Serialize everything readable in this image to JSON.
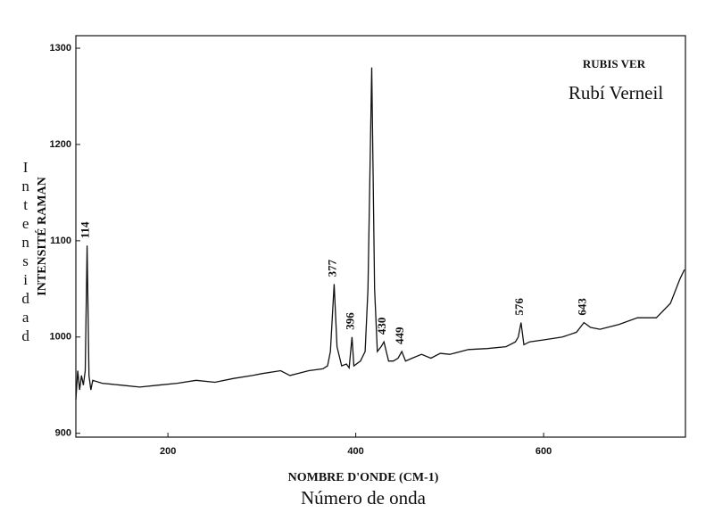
{
  "chart_data": {
    "type": "line",
    "title": "RUBIS VER",
    "subtitle": "Rubí Verneil",
    "x_label": "NOMBRE D'ONDE (CM-1)",
    "x_label_2": "Número de onda",
    "y_label": "INTENSITÉ RAMAN",
    "y_label_2": "Intensidad",
    "color": "#111111",
    "x": [
      102,
      104,
      106,
      108,
      110,
      112,
      114,
      116,
      118,
      120,
      130,
      150,
      170,
      190,
      210,
      230,
      250,
      270,
      290,
      300,
      320,
      330,
      350,
      365,
      370,
      373,
      377,
      380,
      385,
      390,
      393,
      396,
      398,
      405,
      410,
      413,
      417,
      420,
      423,
      427,
      430,
      435,
      440,
      445,
      449,
      453,
      460,
      470,
      480,
      490,
      500,
      520,
      540,
      560,
      570,
      573,
      576,
      579,
      585,
      600,
      620,
      635,
      643,
      650,
      660,
      680,
      700,
      720,
      735,
      745,
      750
    ],
    "values": [
      935,
      965,
      945,
      960,
      950,
      965,
      1095,
      960,
      945,
      955,
      952,
      950,
      948,
      950,
      952,
      955,
      953,
      957,
      960,
      962,
      965,
      960,
      965,
      967,
      970,
      985,
      1055,
      990,
      970,
      972,
      968,
      1000,
      970,
      975,
      985,
      1050,
      1280,
      1050,
      985,
      990,
      995,
      975,
      975,
      978,
      985,
      975,
      978,
      982,
      978,
      983,
      982,
      987,
      988,
      990,
      995,
      1000,
      1015,
      992,
      995,
      997,
      1000,
      1005,
      1015,
      1010,
      1008,
      1013,
      1020,
      1020,
      1035,
      1060,
      1070
    ],
    "peaks": [
      114,
      377,
      396,
      430,
      449,
      576,
      643
    ],
    "xlim": [
      102,
      751
    ],
    "ylim": [
      896,
      1313
    ],
    "xticks": [
      200,
      400,
      600
    ],
    "yticks": [
      900,
      1000,
      1100,
      1200,
      1300
    ]
  }
}
